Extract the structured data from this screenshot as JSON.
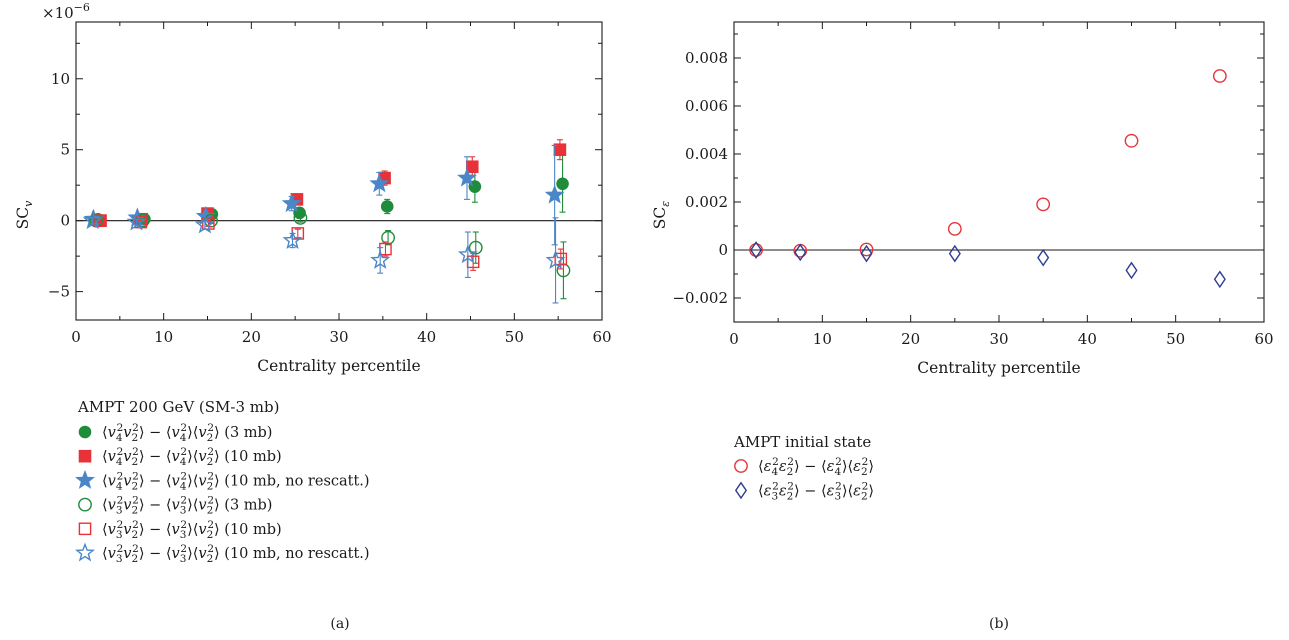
{
  "chart_data": [
    {
      "type": "scatter",
      "panel_label": "(a)",
      "xlabel": "Centrality percentile",
      "ylabel_main": "SC",
      "ylabel_sub": "v",
      "y_multiplier_base": "×10",
      "y_multiplier_exp": "−6",
      "xlim": [
        0,
        60
      ],
      "ylim": [
        -7,
        14
      ],
      "x_ticks": [
        0,
        10,
        20,
        30,
        40,
        50,
        60
      ],
      "x_tick_labels": [
        "0",
        "10",
        "20",
        "30",
        "40",
        "50",
        "60"
      ],
      "y_ticks": [
        -5,
        0,
        5,
        10
      ],
      "y_tick_labels": [
        "−5",
        "0",
        "5",
        "10"
      ],
      "zero_line": true,
      "grid": false,
      "legend_title": "AMPT 200 GeV (SM-3 mb)",
      "legend_placement": "below plot",
      "series": [
        {
          "legend": {
            "a": "4",
            "b": "2",
            "c": "4",
            "d": "2",
            "suffix": "(3 mb)"
          },
          "marker": "circle-filled",
          "color": "#1e8c3a",
          "x": [
            2.5,
            7.8,
            15.5,
            25.5,
            35.5,
            45.5,
            55.5
          ],
          "y": [
            0.1,
            0.1,
            0.45,
            0.55,
            1.0,
            2.4,
            2.6
          ],
          "err": [
            0.15,
            0.15,
            0.25,
            0.35,
            0.5,
            1.1,
            2.0
          ]
        },
        {
          "legend": {
            "a": "4",
            "b": "2",
            "c": "4",
            "d": "2",
            "suffix": "(10 mb)"
          },
          "marker": "square-filled",
          "color": "#e8323a",
          "x": [
            2.8,
            7.5,
            15.0,
            25.2,
            35.2,
            45.2,
            55.2
          ],
          "y": [
            0.0,
            0.1,
            0.5,
            1.5,
            3.0,
            3.8,
            5.0
          ],
          "err": [
            0.1,
            0.1,
            0.2,
            0.3,
            0.5,
            0.7,
            0.7
          ]
        },
        {
          "legend": {
            "a": "4",
            "b": "2",
            "c": "4",
            "d": "2",
            "suffix": "(10 mb, no rescatt.)"
          },
          "marker": "star-filled",
          "color": "#4a86c8",
          "x": [
            2.0,
            7.0,
            14.8,
            24.6,
            34.6,
            44.6,
            54.6
          ],
          "y": [
            0.1,
            0.2,
            0.3,
            1.2,
            2.6,
            3.0,
            1.8
          ],
          "err": [
            0.2,
            0.2,
            0.3,
            0.5,
            0.8,
            1.5,
            3.5
          ]
        },
        {
          "legend": {
            "a": "3",
            "b": "2",
            "c": "3",
            "d": "2",
            "suffix": "(3 mb)"
          },
          "marker": "circle-open",
          "color": "#1e8c3a",
          "x": [
            2.3,
            7.6,
            15.4,
            25.6,
            35.6,
            45.6,
            55.6
          ],
          "y": [
            0.0,
            0.0,
            0.0,
            0.2,
            -1.2,
            -1.9,
            -3.5
          ],
          "err": [
            0.1,
            0.15,
            0.2,
            0.3,
            0.5,
            1.1,
            2.0
          ]
        },
        {
          "legend": {
            "a": "3",
            "b": "2",
            "c": "3",
            "d": "2",
            "suffix": "(10 mb)"
          },
          "marker": "square-open",
          "color": "#e8323a",
          "x": [
            2.7,
            7.4,
            15.1,
            25.3,
            35.3,
            45.3,
            55.3
          ],
          "y": [
            0.0,
            -0.1,
            -0.2,
            -0.9,
            -2.0,
            -2.9,
            -2.7
          ],
          "err": [
            0.1,
            0.1,
            0.2,
            0.3,
            0.5,
            0.6,
            0.7
          ]
        },
        {
          "legend": {
            "a": "3",
            "b": "2",
            "c": "3",
            "d": "2",
            "suffix": "(10 mb, no rescatt.)"
          },
          "marker": "star-open",
          "color": "#4a86c8",
          "x": [
            1.9,
            6.9,
            14.7,
            24.7,
            34.7,
            44.7,
            54.7
          ],
          "y": [
            0.0,
            -0.1,
            -0.3,
            -1.4,
            -2.8,
            -2.4,
            -2.8
          ],
          "err": [
            0.2,
            0.2,
            0.3,
            0.5,
            0.9,
            1.6,
            3.0
          ]
        }
      ]
    },
    {
      "type": "scatter",
      "panel_label": "(b)",
      "xlabel": "Centrality percentile",
      "ylabel_main": "SC",
      "ylabel_sub": "ε",
      "xlim": [
        0,
        60
      ],
      "ylim": [
        -0.003,
        0.0095
      ],
      "x_ticks": [
        0,
        10,
        20,
        30,
        40,
        50,
        60
      ],
      "x_tick_labels": [
        "0",
        "10",
        "20",
        "30",
        "40",
        "50",
        "60"
      ],
      "y_ticks": [
        -0.002,
        0,
        0.002,
        0.004,
        0.006,
        0.008
      ],
      "y_tick_labels": [
        "−0.002",
        "0",
        "0.002",
        "0.004",
        "0.006",
        "0.008"
      ],
      "zero_line": true,
      "grid": false,
      "legend_title": "AMPT initial state",
      "legend_placement": "below plot",
      "series": [
        {
          "legend": {
            "a": "4",
            "b": "2",
            "c": "4",
            "d": "2",
            "suffix": ""
          },
          "marker": "circle-open",
          "color": "#e8323a",
          "x": [
            2.5,
            7.5,
            15,
            25,
            35,
            45,
            55
          ],
          "y": [
            0.0,
            -3e-05,
            2e-05,
            0.00088,
            0.0019,
            0.00455,
            0.00725
          ]
        },
        {
          "legend": {
            "a": "3",
            "b": "2",
            "c": "3",
            "d": "2",
            "suffix": ""
          },
          "marker": "diamond-open",
          "color": "#2c3e94",
          "x": [
            2.5,
            7.5,
            15,
            25,
            35,
            45,
            55
          ],
          "y": [
            0.0,
            -0.0001,
            -0.00015,
            -0.00015,
            -0.00032,
            -0.00085,
            -0.00122
          ]
        }
      ]
    }
  ]
}
